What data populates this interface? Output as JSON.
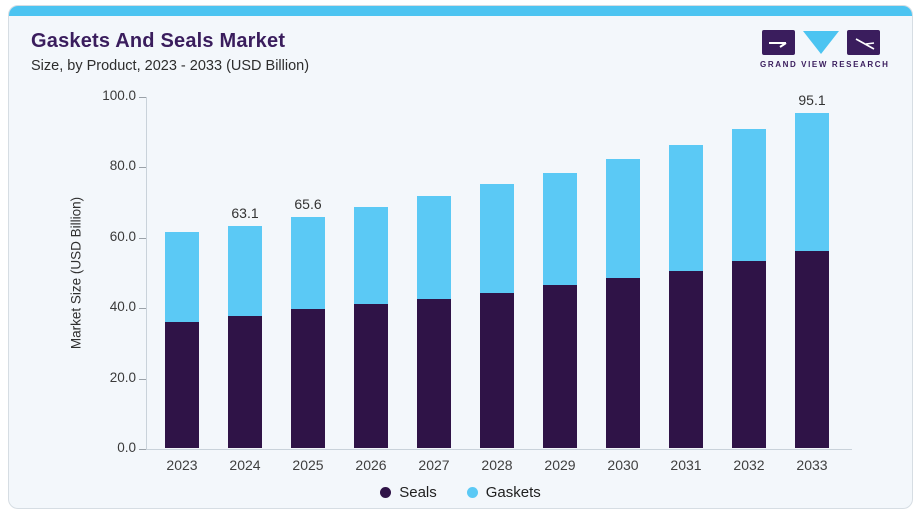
{
  "page": {
    "title": "Gaskets And Seals Market",
    "subtitle": "Size, by Product, 2023 - 2033 (USD Billion)",
    "brand": {
      "name": "GRAND VIEW RESEARCH"
    },
    "colors": {
      "accent_cyan": "#4cc4f1",
      "title_purple": "#3a1d5d",
      "seals_purple": "#2f1347",
      "gaskets_blue": "#5bc9f5",
      "card_background": "#f3f7fb"
    }
  },
  "chart_data": {
    "type": "bar",
    "stacked": true,
    "title": "Gaskets And Seals Market Size, by Product, 2023 - 2033 (USD Billion)",
    "categories": [
      "2023",
      "2024",
      "2025",
      "2026",
      "2027",
      "2028",
      "2029",
      "2030",
      "2031",
      "2032",
      "2033"
    ],
    "series": [
      {
        "name": "Seals",
        "color": "#2f1347",
        "values": [
          35.9,
          37.6,
          39.4,
          40.8,
          42.2,
          44.0,
          46.2,
          48.2,
          50.4,
          53.2,
          56.0
        ]
      },
      {
        "name": "Gaskets",
        "color": "#5bc9f5",
        "values": [
          25.5,
          25.5,
          26.2,
          27.6,
          29.4,
          31.0,
          31.8,
          33.8,
          35.6,
          37.3,
          39.1
        ]
      }
    ],
    "totals": [
      61.4,
      63.1,
      65.6,
      68.4,
      71.6,
      75.0,
      78.0,
      82.0,
      86.0,
      90.5,
      95.1
    ],
    "bar_labels": [
      "",
      "63.1",
      "65.6",
      "",
      "",
      "",
      "",
      "",
      "",
      "",
      "95.1"
    ],
    "xlabel": "",
    "ylabel": "Market Size (USD Billion)",
    "ylim": [
      0,
      100
    ],
    "ytick_labels": [
      "0.0",
      "20.0",
      "40.0",
      "60.0",
      "80.0",
      "100.0"
    ],
    "grid": false,
    "legend_position": "bottom"
  }
}
